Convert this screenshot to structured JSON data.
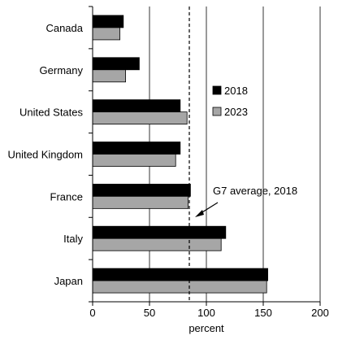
{
  "chart_data": {
    "type": "bar",
    "orientation": "horizontal",
    "categories": [
      "Canada",
      "Germany",
      "United States",
      "United Kingdom",
      "France",
      "Italy",
      "Japan"
    ],
    "series": [
      {
        "name": "2018",
        "values": [
          27,
          41,
          77,
          77,
          86,
          117,
          154
        ],
        "color": "#000000"
      },
      {
        "name": "2023",
        "values": [
          24,
          29,
          83,
          73,
          84,
          113,
          153
        ],
        "color": "#a6a6a6"
      }
    ],
    "xlabel": "percent",
    "xlim": [
      0,
      200
    ],
    "xticks": [
      0,
      50,
      100,
      150,
      200
    ],
    "grid": "vertical",
    "legend_position": "right",
    "reference_line": {
      "value": 85,
      "style": "dashed"
    },
    "annotation": {
      "text": "G7 average, 2018"
    }
  }
}
